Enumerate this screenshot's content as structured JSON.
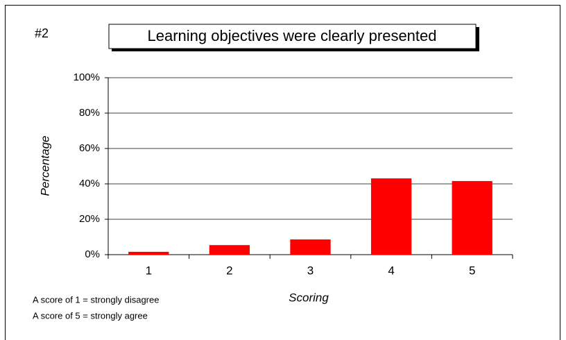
{
  "chart_data": {
    "type": "bar",
    "chart_number": "#2",
    "title": "Learning objectives were clearly presented",
    "x_label": "Scoring",
    "y_label": "Percentage",
    "categories": [
      "1",
      "2",
      "3",
      "4",
      "5"
    ],
    "values": [
      1.6,
      5.4,
      8.6,
      43.1,
      41.6
    ],
    "color": "#ff0000",
    "ylim": [
      0,
      100
    ],
    "yticks": [
      {
        "value": 0,
        "label": "0%"
      },
      {
        "value": 20,
        "label": "20%"
      },
      {
        "value": 40,
        "label": "40%"
      },
      {
        "value": 60,
        "label": "60%"
      },
      {
        "value": 80,
        "label": "80%"
      },
      {
        "value": 100,
        "label": "100%"
      }
    ],
    "grid": true,
    "notes": [
      "A score of 1 = strongly disagree",
      "A score of 5 = strongly agree"
    ]
  }
}
